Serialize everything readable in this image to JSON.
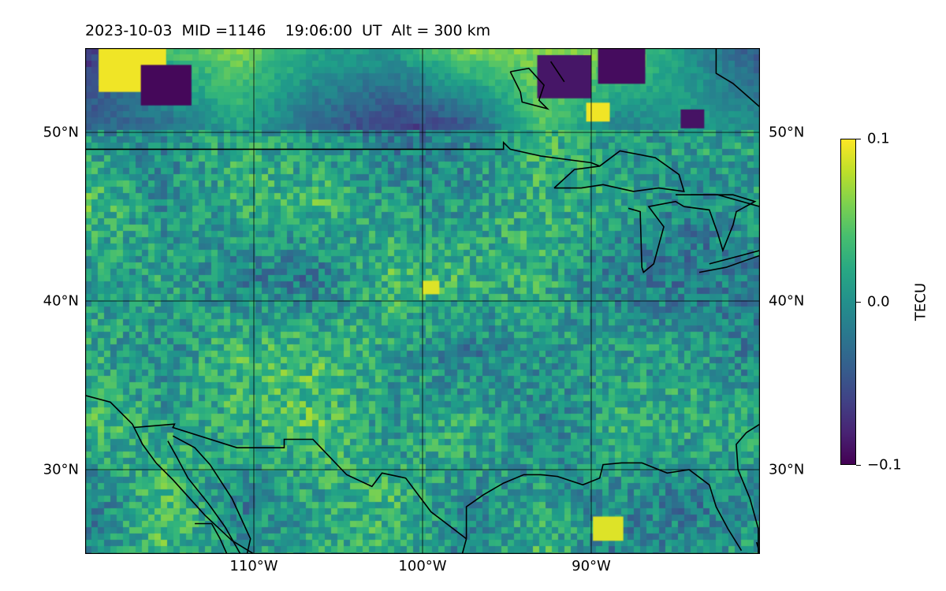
{
  "title": "2023-10-03  MID =1146    19:06:00  UT  Alt = 300 km",
  "map": {
    "projection": "plate-carree",
    "lon_range": [
      -120,
      -80
    ],
    "lat_range": [
      25,
      55
    ],
    "gridlines": true,
    "coastlines": true,
    "lat_ticks": [
      {
        "value": 50,
        "label": "50°N"
      },
      {
        "value": 40,
        "label": "40°N"
      },
      {
        "value": 30,
        "label": "30°N"
      }
    ],
    "lon_ticks": [
      {
        "value": -110,
        "label": "110°W"
      },
      {
        "value": -100,
        "label": "100°W"
      },
      {
        "value": -90,
        "label": "90°W"
      }
    ]
  },
  "colorbar": {
    "label": "TECU",
    "colormap": "viridis",
    "vmin": -0.1,
    "vmax": 0.1,
    "ticks": [
      {
        "value": 0.1,
        "label": "0.1"
      },
      {
        "value": 0.0,
        "label": "0.0"
      },
      {
        "value": -0.1,
        "label": "−0.1"
      }
    ]
  }
}
